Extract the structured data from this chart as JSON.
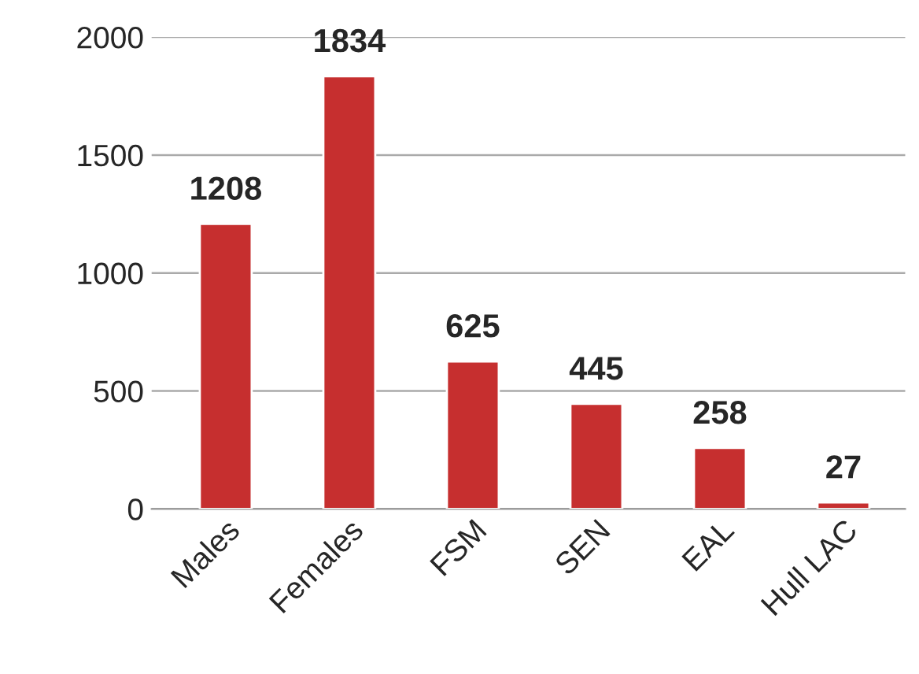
{
  "chart_data": {
    "type": "bar",
    "categories": [
      "Males",
      "Females",
      "FSM",
      "SEN",
      "EAL",
      "Hull LAC"
    ],
    "values": [
      1208,
      1834,
      625,
      445,
      258,
      27
    ],
    "color": "#c62f2f",
    "ylim": [
      0,
      2000
    ],
    "yticks": [
      0,
      500,
      1000,
      1500,
      2000
    ],
    "grid": "y",
    "data_labels": true
  }
}
